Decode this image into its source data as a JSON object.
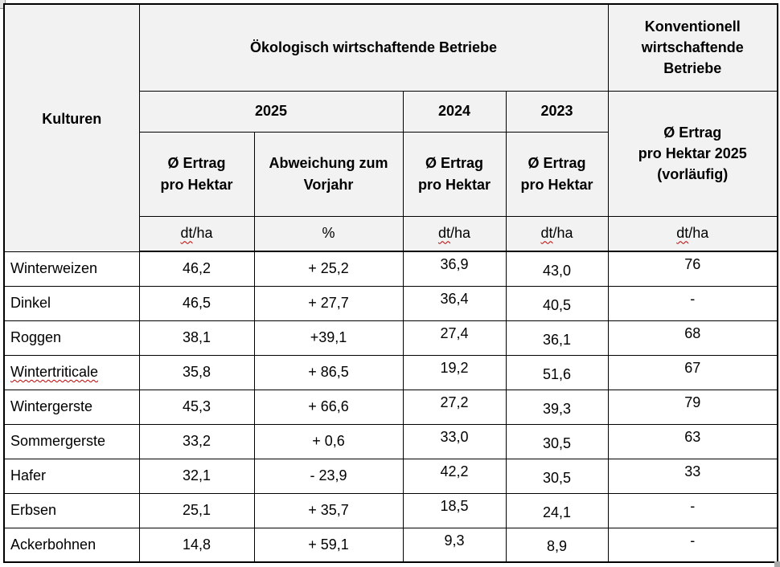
{
  "colors": {
    "header_bg": "#f2f2f2",
    "border": "#000000",
    "text": "#000000",
    "spellcheck_squiggle": "#c00000",
    "resize_handle": "#a9a9a9"
  },
  "icons": {
    "table_resize_handle": "small-gray-square",
    "page_corner_artifact": "cropped-gray-square"
  },
  "table": {
    "header": {
      "kulturen": "Kulturen",
      "eco_group": "Ökologisch wirtschaftende Betriebe",
      "conv_group": "Konventionell\nwirtschaftende\nBetriebe",
      "year_2025": "2025",
      "year_2024": "2024",
      "year_2023": "2023",
      "avg_yield": "Ø Ertrag\npro Hektar",
      "deviation": "Abweichung zum\nVorjahr",
      "conv_avg_yield": "Ø Ertrag\npro Hektar 2025\n(vorläufig)"
    },
    "units": {
      "dt": "dt",
      "ha": "/ha",
      "percent": "%"
    },
    "rows": [
      {
        "culture": "Winterweizen",
        "eco_2025": "46,2",
        "deviation": "+ 25,2",
        "eco_2024": "36,9",
        "eco_2023": "43,0",
        "conv_2025": "76"
      },
      {
        "culture": "Dinkel",
        "eco_2025": "46,5",
        "deviation": "+ 27,7",
        "eco_2024": "36,4",
        "eco_2023": "40,5",
        "conv_2025": "-"
      },
      {
        "culture": "Roggen",
        "eco_2025": "38,1",
        "deviation": "+39,1",
        "eco_2024": "27,4",
        "eco_2023": "36,1",
        "conv_2025": "68"
      },
      {
        "culture": "Wintertriticale",
        "eco_2025": "35,8",
        "deviation": "+ 86,5",
        "eco_2024": "19,2",
        "eco_2023": "51,6",
        "conv_2025": "67",
        "misspelled": true
      },
      {
        "culture": "Wintergerste",
        "eco_2025": "45,3",
        "deviation": "+ 66,6",
        "eco_2024": "27,2",
        "eco_2023": "39,3",
        "conv_2025": "79"
      },
      {
        "culture": "Sommergerste",
        "eco_2025": "33,2",
        "deviation": "+ 0,6",
        "eco_2024": "33,0",
        "eco_2023": "30,5",
        "conv_2025": "63"
      },
      {
        "culture": "Hafer",
        "eco_2025": "32,1",
        "deviation": "- 23,9",
        "eco_2024": "42,2",
        "eco_2023": "30,5",
        "conv_2025": "33"
      },
      {
        "culture": "Erbsen",
        "eco_2025": "25,1",
        "deviation": "+ 35,7",
        "eco_2024": "18,5",
        "eco_2023": "24,1",
        "conv_2025": "-"
      },
      {
        "culture": "Ackerbohnen",
        "eco_2025": "14,8",
        "deviation": "+ 59,1",
        "eco_2024": "9,3",
        "eco_2023": "8,9",
        "conv_2025": "-"
      }
    ]
  }
}
